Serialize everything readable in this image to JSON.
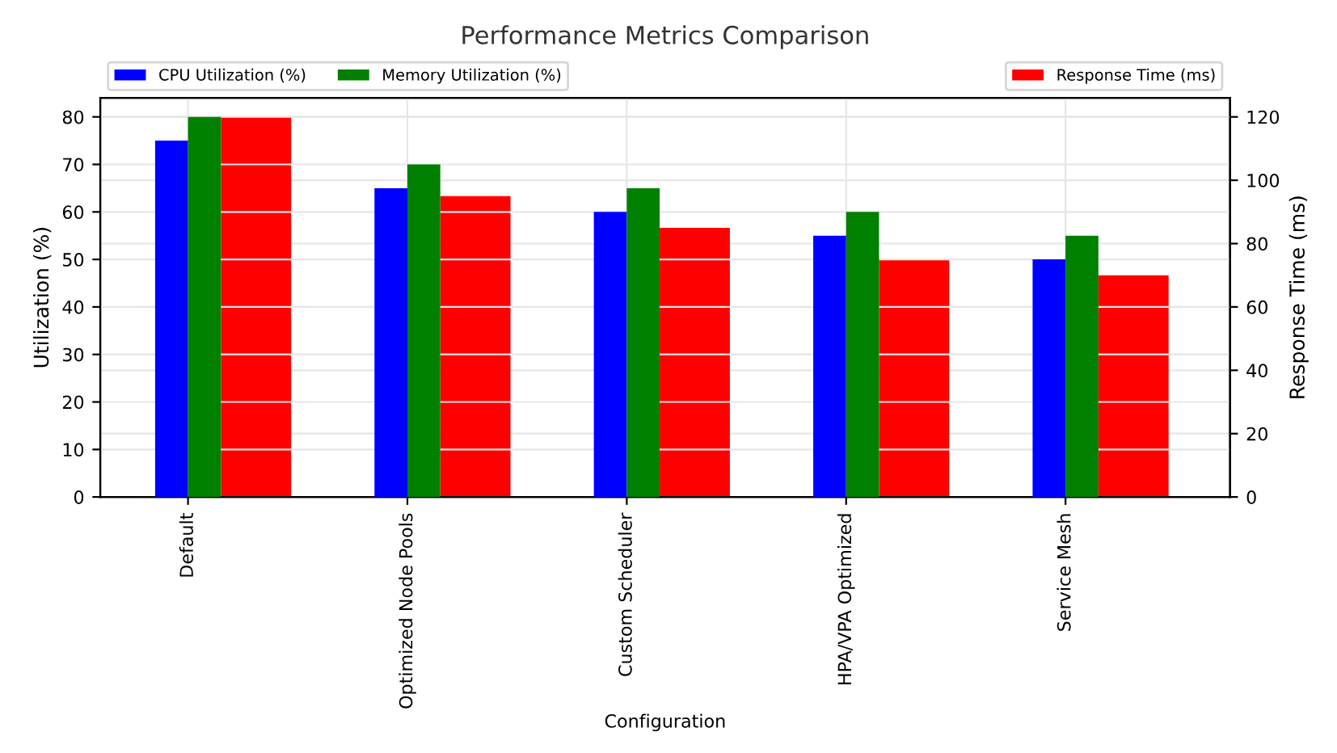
{
  "chart_data": {
    "type": "bar",
    "title": "Performance Metrics Comparison",
    "xlabel": "Configuration",
    "ylabel": "Utilization (%)",
    "y2label": "Response Time (ms)",
    "categories": [
      "Default",
      "Optimized Node Pools",
      "Custom Scheduler",
      "HPA/VPA Optimized",
      "Service Mesh"
    ],
    "series": [
      {
        "name": "CPU Utilization (%)",
        "color": "#0000ff",
        "values": [
          75,
          65,
          60,
          55,
          50
        ]
      },
      {
        "name": "Memory Utilization (%)",
        "color": "#008000",
        "values": [
          80,
          70,
          65,
          60,
          55
        ]
      },
      {
        "name": "Response Time (ms)",
        "color": "#ff0000",
        "values": [
          120,
          95,
          85,
          75,
          70
        ],
        "axis": "y2"
      }
    ],
    "ylim": [
      0,
      84
    ],
    "yticks": [
      0,
      10,
      20,
      30,
      40,
      50,
      60,
      70,
      80
    ],
    "y2lim": [
      0,
      126
    ],
    "y2ticks": [
      0,
      20,
      40,
      60,
      80,
      100,
      120
    ],
    "grid": true,
    "legend": "top"
  }
}
